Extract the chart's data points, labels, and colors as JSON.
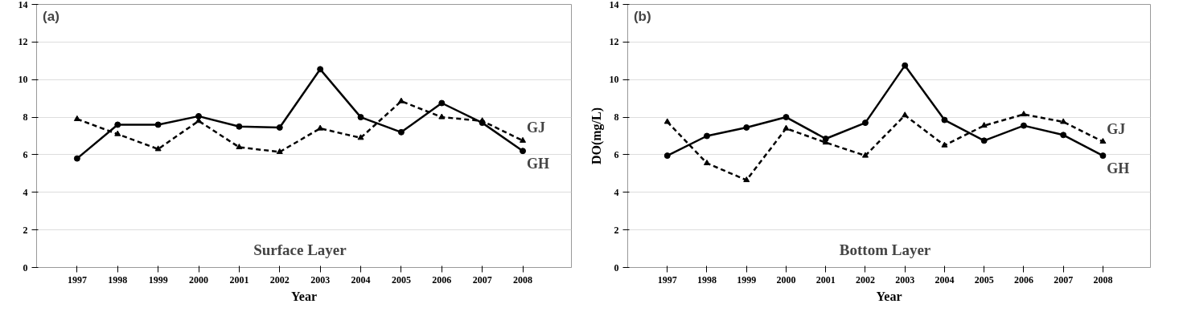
{
  "chart_data": [
    {
      "type": "line",
      "xlabel": "Year",
      "annotations": [
        "(a)",
        "Surface Layer"
      ],
      "categories": [
        "1997",
        "1998",
        "1999",
        "2000",
        "2001",
        "2002",
        "2003",
        "2004",
        "2005",
        "2006",
        "2007",
        "2008"
      ],
      "ylim": [
        0,
        14
      ],
      "yticks": [
        0,
        2,
        4,
        6,
        8,
        10,
        12,
        14
      ],
      "grid": "y",
      "series": [
        {
          "name": "GH",
          "color": "#000000",
          "marker": "circle",
          "line_style": "solid",
          "values": [
            5.8,
            7.6,
            7.6,
            8.05,
            7.5,
            7.45,
            10.55,
            8.0,
            7.2,
            8.75,
            7.7,
            6.2
          ]
        },
        {
          "name": "GJ",
          "color": "#000000",
          "marker": "triangle",
          "line_style": "dashed",
          "values": [
            7.9,
            7.1,
            6.3,
            7.8,
            6.4,
            6.15,
            7.4,
            6.9,
            8.85,
            8.0,
            7.8,
            6.75
          ]
        }
      ]
    },
    {
      "type": "line",
      "xlabel": "Year",
      "ylabel": "DO(mg/L)",
      "annotations": [
        "(b)",
        "Bottom Layer"
      ],
      "categories": [
        "1997",
        "1998",
        "1999",
        "2000",
        "2001",
        "2002",
        "2003",
        "2004",
        "2005",
        "2006",
        "2007",
        "2008"
      ],
      "ylim": [
        0,
        14
      ],
      "yticks": [
        0,
        2,
        4,
        6,
        8,
        10,
        12,
        14
      ],
      "grid": "y",
      "series": [
        {
          "name": "GH",
          "color": "#000000",
          "marker": "circle",
          "line_style": "solid",
          "values": [
            5.95,
            7.0,
            7.45,
            8.0,
            6.85,
            7.7,
            10.75,
            7.85,
            6.75,
            7.55,
            7.05,
            5.95
          ]
        },
        {
          "name": "GJ",
          "color": "#000000",
          "marker": "triangle",
          "line_style": "dashed",
          "values": [
            7.75,
            5.55,
            4.65,
            7.4,
            6.65,
            5.95,
            8.1,
            6.5,
            7.55,
            8.15,
            7.75,
            6.7
          ]
        }
      ]
    }
  ]
}
